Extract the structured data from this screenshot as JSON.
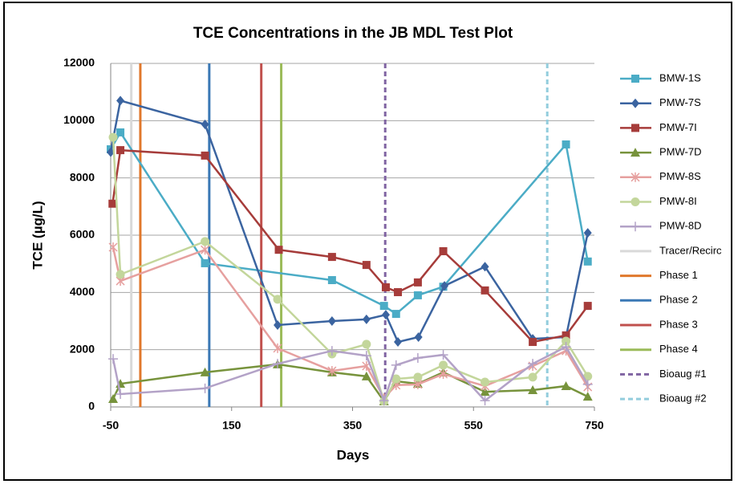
{
  "chart_data": {
    "type": "line",
    "title": "TCE Concentrations in the JB MDL Test Plot",
    "xlabel": "Days",
    "ylabel": "TCE (µg/L)",
    "xlim": [
      -50,
      750
    ],
    "xticks": [
      -50,
      150,
      350,
      550,
      750
    ],
    "ylim": [
      0,
      12000
    ],
    "yticks": [
      0,
      2000,
      4000,
      6000,
      8000,
      10000,
      12000
    ],
    "grid": true,
    "legend": "right",
    "series": [
      {
        "name": "BMW-1S",
        "color": "#4bacc6",
        "marker": "square",
        "x": [
          -50,
          -34,
          106,
          316,
          402,
          422,
          458,
          500,
          703,
          739
        ],
        "values": [
          9000,
          9590,
          5020,
          4430,
          3530,
          3250,
          3900,
          4200,
          9170,
          5080
        ]
      },
      {
        "name": "PMW-7S",
        "color": "#3b64a0",
        "marker": "diamond",
        "x": [
          -50,
          -34,
          106,
          226,
          316,
          373,
          405,
          425,
          459,
          502,
          569,
          648,
          703,
          739
        ],
        "values": [
          8900,
          10700,
          9870,
          2860,
          3000,
          3060,
          3220,
          2270,
          2440,
          4230,
          4900,
          2380,
          2440,
          6080
        ]
      },
      {
        "name": "PMW-7I",
        "color": "#a63c3a",
        "marker": "square",
        "x": [
          -47,
          -34,
          106,
          228,
          316,
          373,
          405,
          425,
          458,
          500,
          569,
          648,
          703,
          739
        ],
        "values": [
          7100,
          8970,
          8780,
          5490,
          5240,
          4960,
          4180,
          4010,
          4350,
          5440,
          4070,
          2270,
          2500,
          3530
        ]
      },
      {
        "name": "PMW-7D",
        "color": "#77933c",
        "marker": "triangle",
        "x": [
          -46,
          -34,
          106,
          226,
          316,
          373,
          402,
          422,
          458,
          500,
          569,
          648,
          703,
          739
        ],
        "values": [
          280,
          810,
          1210,
          1490,
          1210,
          1070,
          200,
          900,
          810,
          1210,
          530,
          590,
          730,
          360
        ]
      },
      {
        "name": "PMW-8S",
        "color": "#e6a09f",
        "marker": "star",
        "x": [
          -46,
          -34,
          106,
          226,
          316,
          373,
          402,
          422,
          458,
          500,
          569,
          648,
          703,
          739
        ],
        "values": [
          5580,
          4400,
          5490,
          2050,
          1260,
          1430,
          310,
          760,
          790,
          1150,
          730,
          1430,
          1960,
          700
        ]
      },
      {
        "name": "PMW-8I",
        "color": "#c3d69b",
        "marker": "circle",
        "x": [
          -46,
          -34,
          106,
          226,
          316,
          373,
          402,
          422,
          458,
          500,
          569,
          648,
          703,
          739
        ],
        "values": [
          9420,
          4630,
          5780,
          3760,
          1850,
          2190,
          200,
          980,
          1040,
          1460,
          870,
          1040,
          2300,
          1070
        ]
      },
      {
        "name": "PMW-8D",
        "color": "#b3a2c7",
        "marker": "plus",
        "x": [
          -46,
          -34,
          106,
          226,
          316,
          373,
          402,
          422,
          458,
          500,
          569,
          648,
          703,
          739
        ],
        "values": [
          1680,
          450,
          650,
          1510,
          1960,
          1790,
          220,
          1460,
          1710,
          1820,
          220,
          1510,
          2100,
          790
        ]
      }
    ],
    "vlines": [
      {
        "name": "Tracer/Recirc",
        "color": "#d9d9d9",
        "x": -16,
        "dashed": false
      },
      {
        "name": "Phase 1",
        "color": "#e0782c",
        "x": -1,
        "dashed": false
      },
      {
        "name": "Phase 2",
        "color": "#3a78b5",
        "x": 113,
        "dashed": false
      },
      {
        "name": "Phase 3",
        "color": "#c0504d",
        "x": 199,
        "dashed": false
      },
      {
        "name": "Phase 4",
        "color": "#9bbb59",
        "x": 232,
        "dashed": false
      },
      {
        "name": "Bioaug #1",
        "color": "#8064a2",
        "x": 404,
        "dashed": true
      },
      {
        "name": "Bioaug #2",
        "color": "#93cddd",
        "x": 672,
        "dashed": true
      }
    ]
  }
}
